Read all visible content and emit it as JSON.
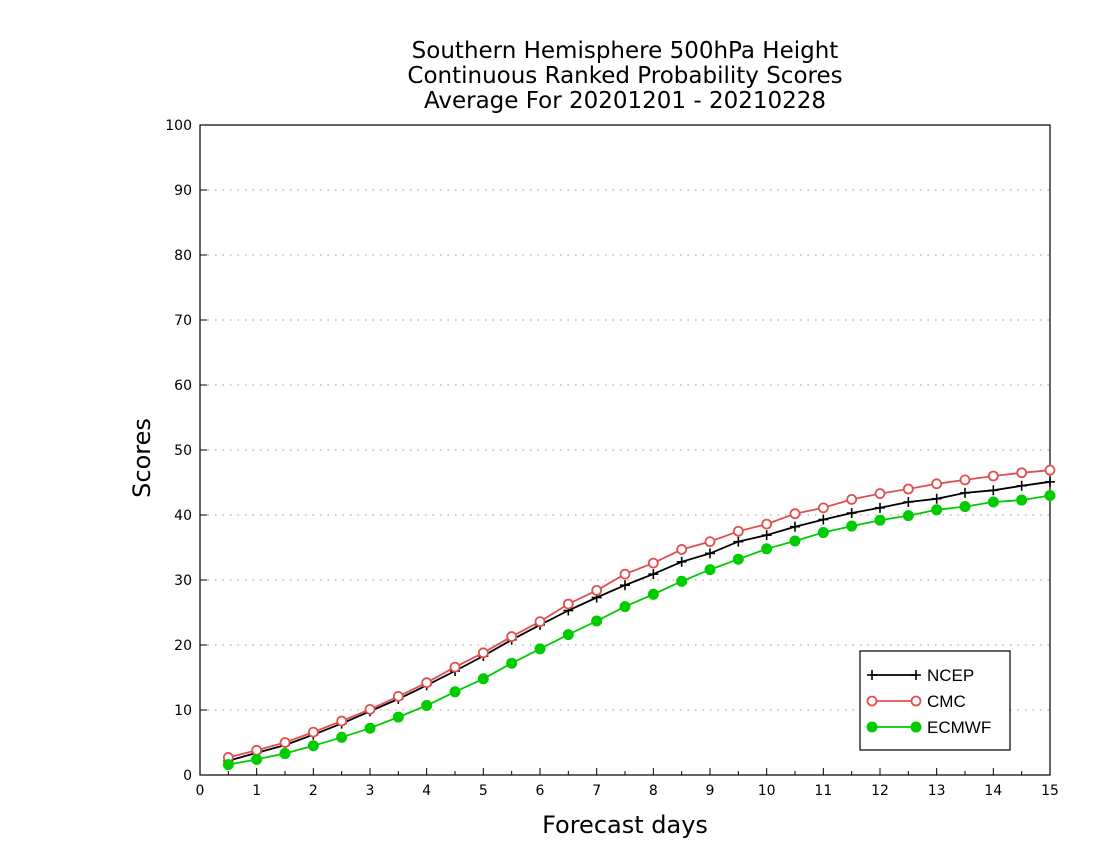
{
  "chart_data": {
    "type": "line",
    "title_lines": [
      "Southern Hemisphere 500hPa Height",
      "Continuous Ranked Probability Scores",
      "Average For 20201201 - 20210228"
    ],
    "xlabel": "Forecast days",
    "ylabel": "Scores",
    "xlim": [
      0,
      15
    ],
    "ylim": [
      0,
      100
    ],
    "xticks": [
      0,
      1,
      2,
      3,
      4,
      5,
      6,
      7,
      8,
      9,
      10,
      11,
      12,
      13,
      14,
      15
    ],
    "yticks": [
      0,
      10,
      20,
      30,
      40,
      50,
      60,
      70,
      80,
      90,
      100
    ],
    "grid": "horizontal dotted",
    "legend_position": "bottom-right",
    "x": [
      0.5,
      1,
      1.5,
      2,
      2.5,
      3,
      3.5,
      4,
      4.5,
      5,
      5.5,
      6,
      6.5,
      7,
      7.5,
      8,
      8.5,
      9,
      9.5,
      10,
      10.5,
      11,
      11.5,
      12,
      12.5,
      13,
      13.5,
      14,
      14.5,
      15
    ],
    "series": [
      {
        "name": "NCEP",
        "color": "#000000",
        "marker": "plus",
        "values": [
          2.2,
          3.4,
          4.6,
          6.2,
          7.9,
          9.8,
          11.7,
          13.8,
          16.0,
          18.3,
          20.8,
          23.1,
          25.3,
          27.3,
          29.2,
          30.9,
          32.8,
          34.1,
          35.9,
          36.9,
          38.2,
          39.3,
          40.3,
          41.1,
          42.0,
          42.5,
          43.4,
          43.8,
          44.5,
          45.1
        ]
      },
      {
        "name": "CMC",
        "color": "#e05050",
        "marker": "open-circle",
        "values": [
          2.7,
          3.8,
          5.0,
          6.6,
          8.3,
          10.1,
          12.1,
          14.2,
          16.6,
          18.8,
          21.3,
          23.6,
          26.3,
          28.4,
          30.9,
          32.6,
          34.7,
          35.9,
          37.5,
          38.6,
          40.2,
          41.1,
          42.4,
          43.3,
          44.0,
          44.8,
          45.4,
          46.0,
          46.5,
          46.9
        ]
      },
      {
        "name": "ECMWF",
        "color": "#00cc00",
        "marker": "filled-circle",
        "values": [
          1.6,
          2.4,
          3.3,
          4.5,
          5.8,
          7.2,
          8.9,
          10.7,
          12.8,
          14.8,
          17.2,
          19.4,
          21.6,
          23.7,
          25.9,
          27.8,
          29.8,
          31.6,
          33.2,
          34.8,
          36.0,
          37.3,
          38.3,
          39.2,
          39.9,
          40.8,
          41.3,
          42.0,
          42.3,
          43.0
        ]
      }
    ]
  }
}
